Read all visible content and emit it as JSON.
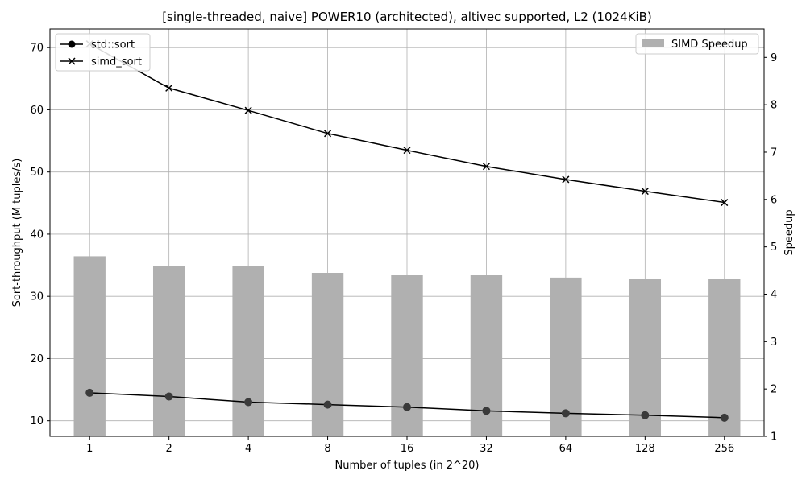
{
  "chart_data": {
    "type": "bar+line",
    "title": "[single-threaded, naive] POWER10 (architected), altivec supported, L2 (1024KiB)",
    "xlabel": "Number of tuples (in 2^20)",
    "ylabel_left": "Sort-throughput (M tuples/s)",
    "ylabel_right": "Speedup",
    "categories": [
      "1",
      "2",
      "4",
      "8",
      "16",
      "32",
      "64",
      "128",
      "256"
    ],
    "ylim_left": [
      7.5,
      73
    ],
    "ylim_right": [
      1,
      9.6
    ],
    "yticks_left": [
      "10",
      "20",
      "30",
      "40",
      "50",
      "60",
      "70"
    ],
    "yticks_right": [
      "1",
      "2",
      "3",
      "4",
      "5",
      "6",
      "7",
      "8",
      "9"
    ],
    "grid": true,
    "line_series": [
      {
        "name": "std::sort",
        "marker": "o",
        "color": "#000000",
        "values": [
          14.5,
          13.9,
          13.0,
          12.6,
          12.2,
          11.6,
          11.2,
          10.9,
          10.5
        ]
      },
      {
        "name": "simd_sort",
        "marker": "x",
        "color": "#000000",
        "values": [
          70.6,
          63.5,
          59.9,
          56.2,
          53.5,
          50.9,
          48.8,
          46.9,
          45.1
        ]
      }
    ],
    "bar_series": {
      "name": "SIMD Speedup",
      "color": "#b0b0b0",
      "values": [
        4.8,
        4.6,
        4.6,
        4.45,
        4.4,
        4.4,
        4.35,
        4.33,
        4.32
      ]
    },
    "legend_left_position": "upper-left",
    "legend_right_position": "upper-right"
  }
}
